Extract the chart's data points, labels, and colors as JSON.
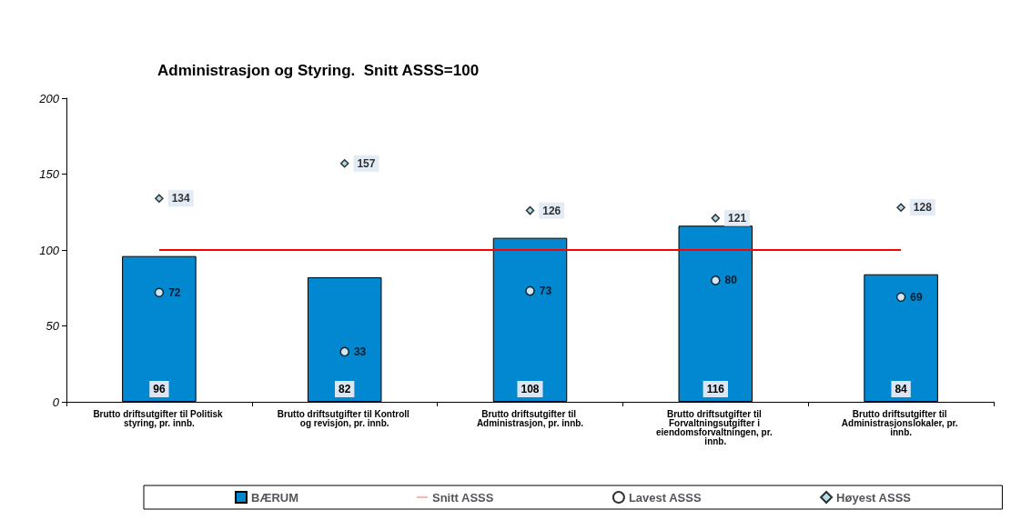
{
  "chart_data": {
    "type": "bar",
    "title": "Administrasjon og Styring.  Snitt ASSS=100",
    "categories": [
      "Brutto driftsutgifter til Politisk styring, pr. innb.",
      "Brutto driftsutgifter til Kontroll og revisjon, pr. innb.",
      "Brutto driftsutgifter til Administrasjon, pr. innb.",
      "Brutto driftsutgifter til Forvaltningsutgifter i eiendomsforvaltningen, pr. innb.",
      "Brutto driftsutgifter til Administrasjonslokaler, pr. innb."
    ],
    "series": [
      {
        "name": "BÆRUM",
        "color": "#0288d1",
        "values": [
          96,
          82,
          108,
          116,
          84
        ],
        "value_labels": [
          "96",
          "82",
          "108",
          "116",
          "84"
        ]
      },
      {
        "name": "Snitt ASSS",
        "type": "line",
        "color": "#ff0000",
        "values": [
          100,
          100,
          100,
          100,
          100
        ],
        "marker": "none"
      },
      {
        "name": "Lavest ASSS",
        "type": "scatter",
        "color": "#ffffff",
        "marker": "circle",
        "values": [
          72,
          33,
          73,
          80,
          69
        ],
        "value_labels": [
          "72",
          "33",
          "73",
          "80",
          "69"
        ]
      },
      {
        "name": "Høyest ASSS",
        "type": "scatter",
        "color": "#9fd3de",
        "marker": "diamond",
        "values": [
          134,
          157,
          126,
          121,
          128
        ],
        "value_labels": [
          "134",
          "157",
          "126",
          "121",
          "128"
        ]
      }
    ],
    "ylim": [
      0,
      200
    ],
    "yticks": [
      0,
      50,
      100,
      150,
      200
    ],
    "grid": false,
    "legend": "bottom"
  }
}
